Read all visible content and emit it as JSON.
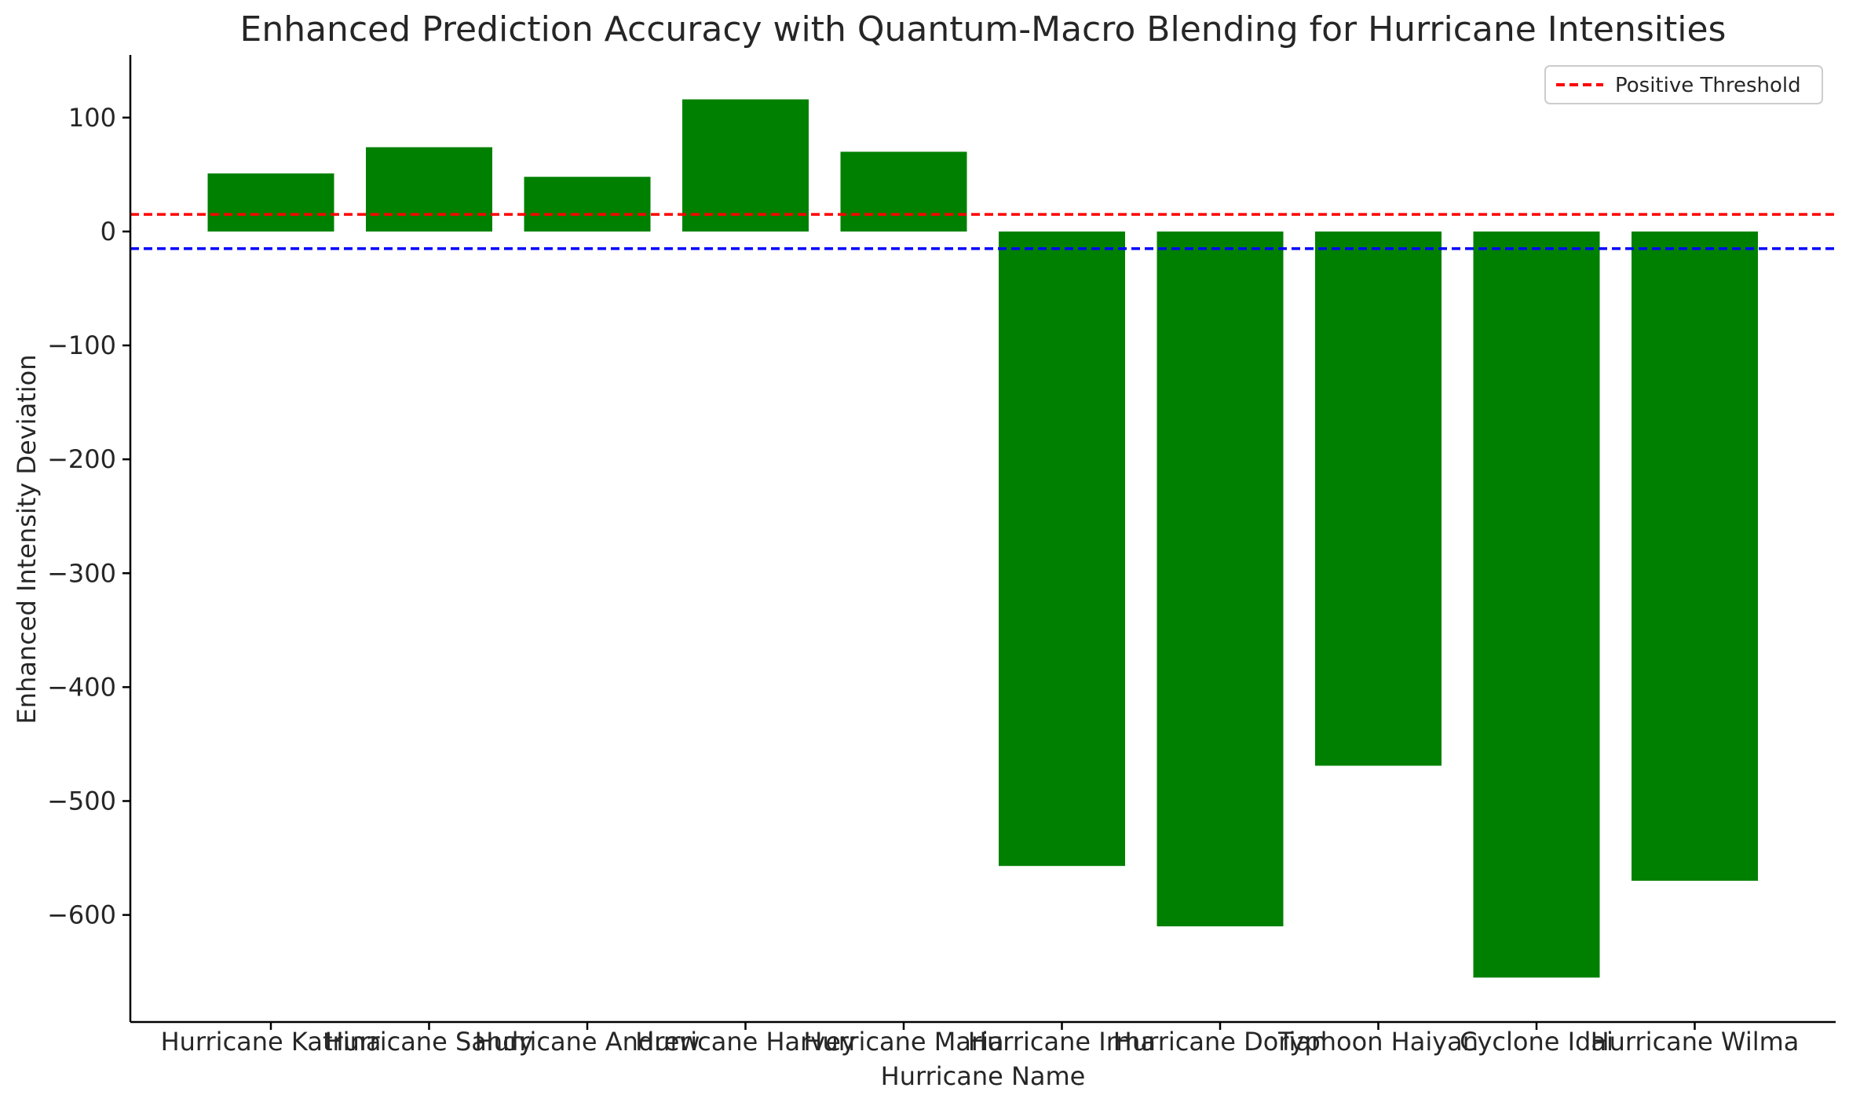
{
  "chart_data": {
    "type": "bar",
    "title": "Enhanced Prediction Accuracy with Quantum-Macro Blending for Hurricane Intensities",
    "xlabel": "Hurricane Name",
    "ylabel": "Enhanced Intensity Deviation",
    "categories": [
      "Hurricane Katrina",
      "Hurricane Sandy",
      "Hurricane Andrew",
      "Hurricane Harvey",
      "Hurricane Maria",
      "Hurricane Irma",
      "Hurricane Dorian",
      "Typhoon Haiyan",
      "Cyclone Idai",
      "Hurricane Wilma"
    ],
    "values": [
      51,
      74,
      48,
      116,
      70,
      -557,
      -610,
      -469,
      -655,
      -570
    ],
    "ylim": [
      -694,
      155
    ],
    "yticks": [
      100,
      0,
      -100,
      -200,
      -300,
      -400,
      -500,
      -600
    ],
    "ytick_labels": [
      "100",
      "0",
      "−100",
      "−200",
      "−300",
      "−400",
      "−500",
      "−600"
    ],
    "bar_color": "#008000",
    "reference_lines": [
      {
        "value": 15,
        "color": "#ff0000",
        "name": "Positive Threshold"
      },
      {
        "value": -15,
        "color": "#0000ff",
        "name": ""
      }
    ],
    "legend": {
      "position": "top-right",
      "entries": [
        "Positive Threshold"
      ]
    },
    "grid": false
  }
}
